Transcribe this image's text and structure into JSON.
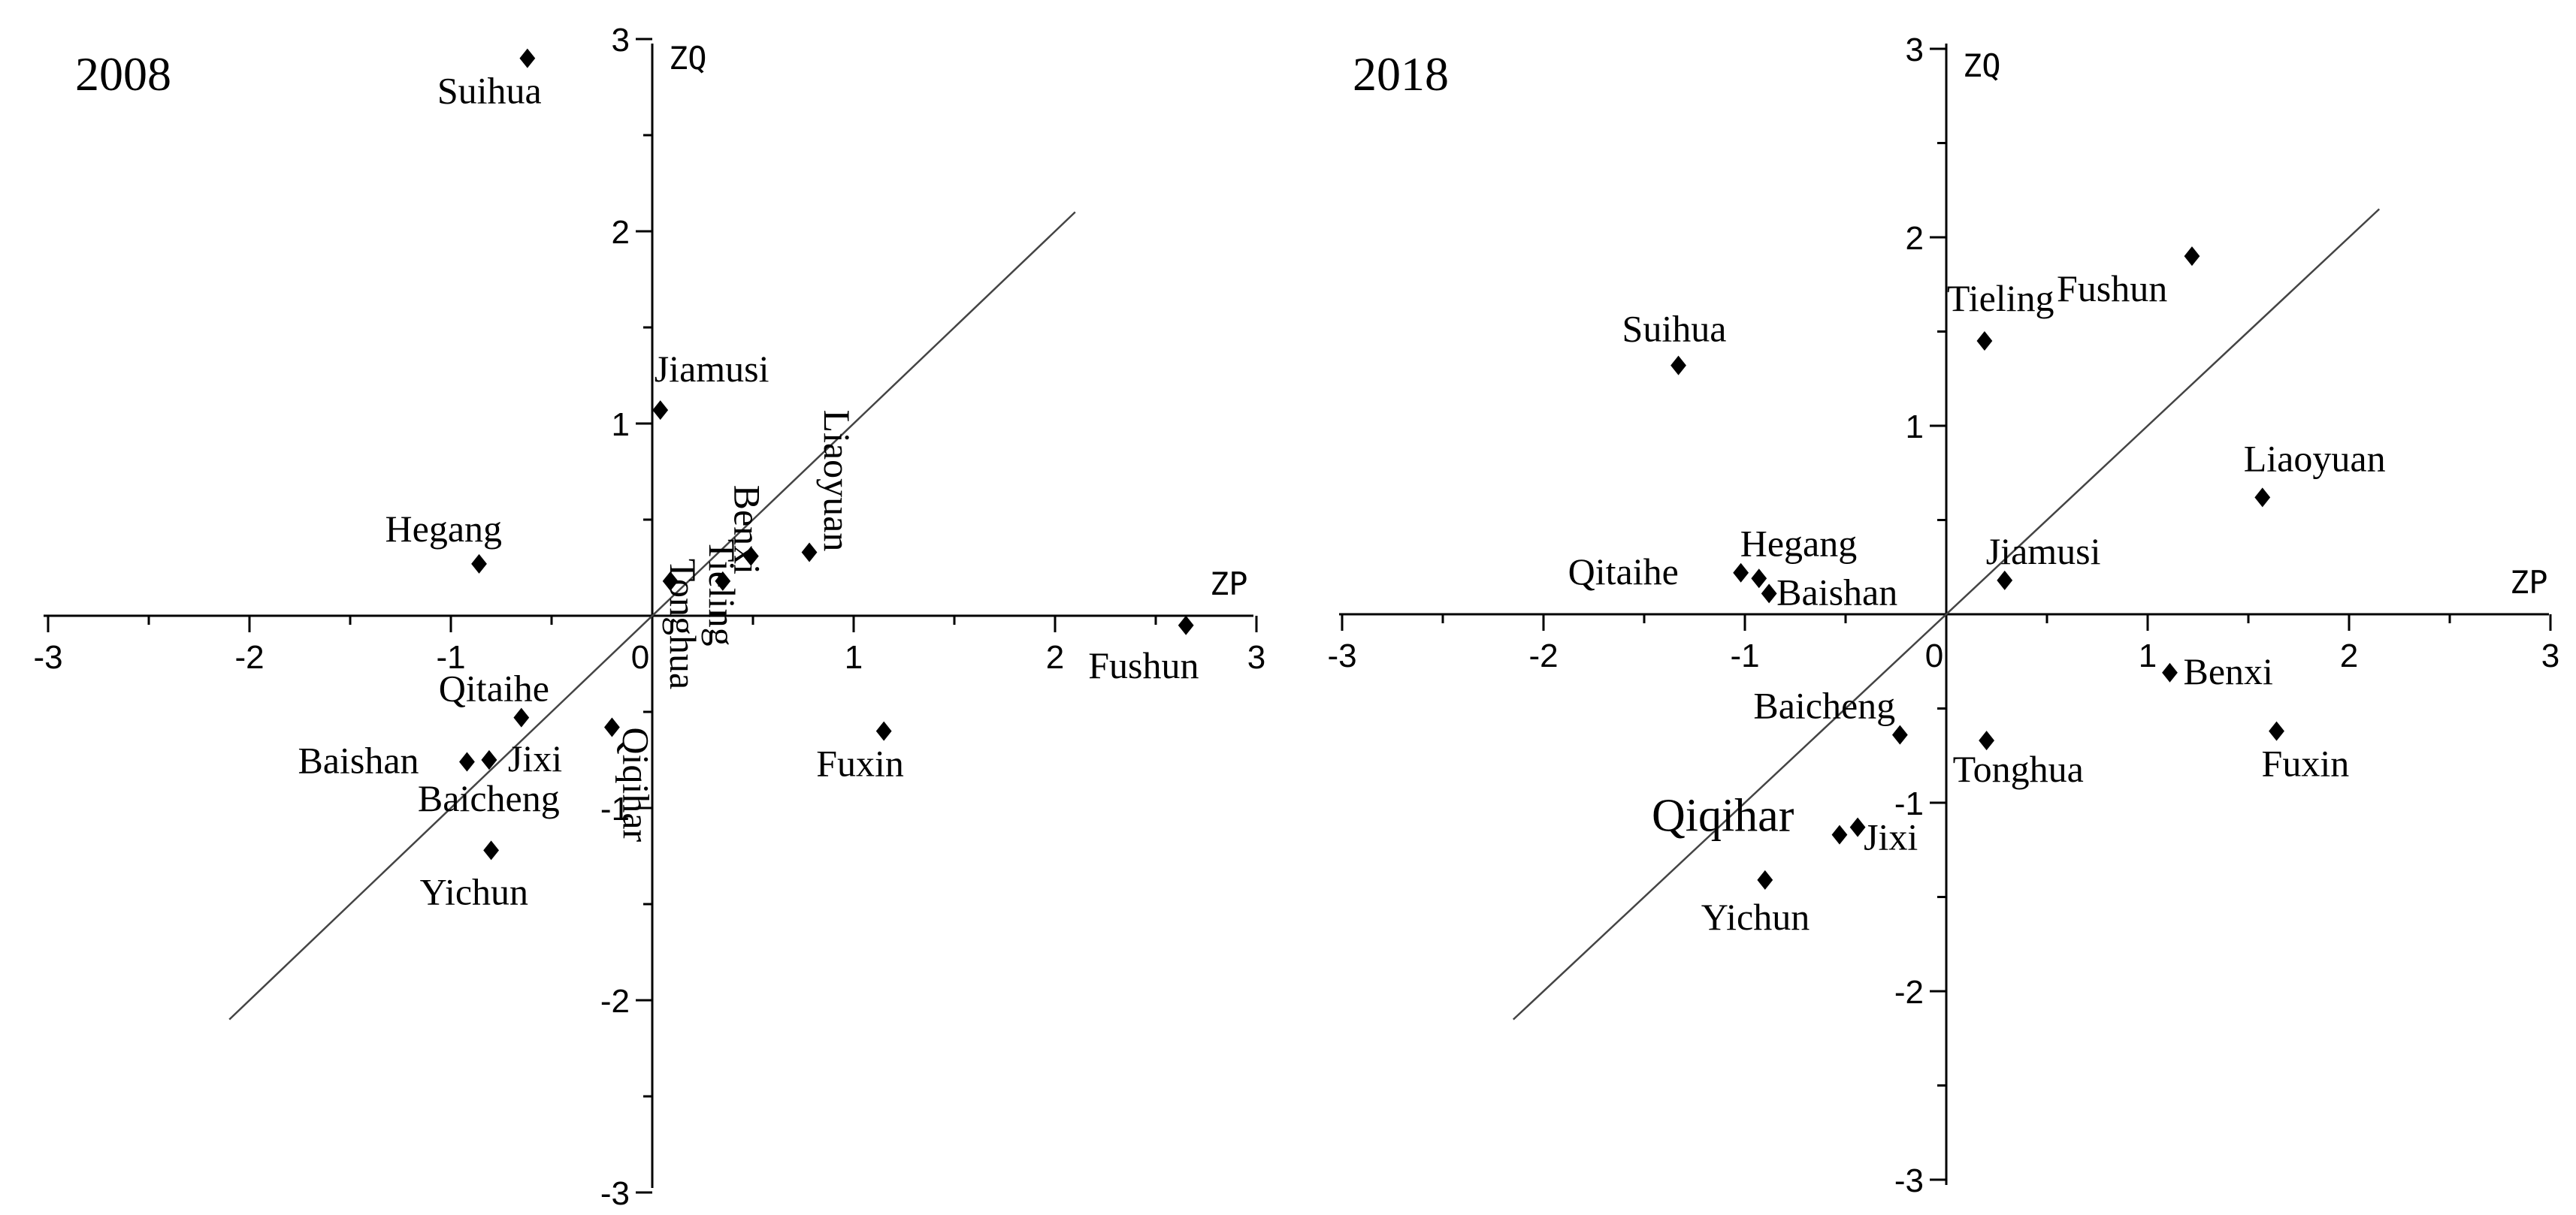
{
  "chart_data": [
    {
      "type": "scatter",
      "title": "2008",
      "xlabel": "ZP",
      "ylabel": "ZQ",
      "xlim": [
        -3,
        3
      ],
      "ylim": [
        -3,
        3
      ],
      "x_ticks": [
        "-3",
        "-2",
        "-1",
        "0",
        "1",
        "2",
        "3"
      ],
      "y_ticks": [
        "3",
        "2",
        "1",
        "0",
        "-1",
        "-2",
        "-3"
      ],
      "reference_line": {
        "slope": 1,
        "from": -2.1,
        "to": 2.1
      },
      "grid": false,
      "points": [
        {
          "name": "Suihua",
          "x": -0.62,
          "y": 2.9
        },
        {
          "name": "Jiamusi",
          "x": 0.04,
          "y": 1.07
        },
        {
          "name": "Hegang",
          "x": -0.86,
          "y": 0.27
        },
        {
          "name": "Tonghua",
          "x": 0.09,
          "y": 0.18
        },
        {
          "name": "Tieling",
          "x": 0.35,
          "y": 0.18
        },
        {
          "name": "Benxi",
          "x": 0.49,
          "y": 0.31
        },
        {
          "name": "Liaoyuan",
          "x": 0.78,
          "y": 0.33
        },
        {
          "name": "Fushun",
          "x": 2.65,
          "y": -0.05
        },
        {
          "name": "Qitaihe",
          "x": -0.65,
          "y": -0.53
        },
        {
          "name": "Qiqihar",
          "x": -0.2,
          "y": -0.58
        },
        {
          "name": "Fuxin",
          "x": 1.15,
          "y": -0.6
        },
        {
          "name": "Baishan",
          "x": -0.92,
          "y": -0.76
        },
        {
          "name": "Jixi",
          "x": -0.81,
          "y": -0.75
        },
        {
          "name": "Baicheng",
          "x": -0.81,
          "y": -0.75
        },
        {
          "name": "Yichun",
          "x": -0.8,
          "y": -1.22
        }
      ]
    },
    {
      "type": "scatter",
      "title": "2018",
      "xlabel": "ZP",
      "ylabel": "ZQ",
      "xlim": [
        -3,
        3
      ],
      "ylim": [
        -3,
        3
      ],
      "x_ticks": [
        "-3",
        "-2",
        "-1",
        "0",
        "1",
        "2",
        "3"
      ],
      "y_ticks": [
        "3",
        "2",
        "1",
        "0",
        "-1",
        "-2",
        "-3"
      ],
      "reference_line": {
        "slope": 1,
        "from": -2.15,
        "to": 2.15
      },
      "grid": false,
      "points": [
        {
          "name": "Fushun",
          "x": 1.22,
          "y": 1.9
        },
        {
          "name": "Tieling",
          "x": 0.19,
          "y": 1.45
        },
        {
          "name": "Suihua",
          "x": -1.33,
          "y": 1.32
        },
        {
          "name": "Liaoyuan",
          "x": 1.57,
          "y": 0.62
        },
        {
          "name": "Hegang",
          "x": -0.93,
          "y": 0.19
        },
        {
          "name": "Qitaihe",
          "x": -1.02,
          "y": 0.22
        },
        {
          "name": "Baishan",
          "x": -0.88,
          "y": 0.11
        },
        {
          "name": "Jiamusi",
          "x": 0.29,
          "y": 0.18
        },
        {
          "name": "Benxi",
          "x": 1.11,
          "y": -0.31
        },
        {
          "name": "Baicheng",
          "x": -0.23,
          "y": -0.64
        },
        {
          "name": "Tonghua",
          "x": 0.2,
          "y": -0.67
        },
        {
          "name": "Fuxin",
          "x": 1.64,
          "y": -0.62
        },
        {
          "name": "Qiqihar",
          "x": -0.53,
          "y": -1.17
        },
        {
          "name": "Jixi",
          "x": -0.44,
          "y": -1.13
        },
        {
          "name": "Yichun",
          "x": -0.9,
          "y": -1.41
        }
      ]
    }
  ]
}
